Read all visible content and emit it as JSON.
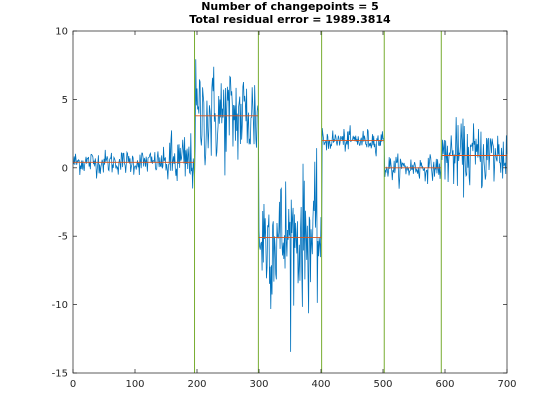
{
  "chart_data": {
    "type": "line",
    "title_lines": [
      "Number of changepoints = 5",
      "Total residual error = 1989.3814"
    ],
    "xlabel": "",
    "ylabel": "",
    "xlim": [
      0,
      700
    ],
    "ylim": [
      -15,
      10
    ],
    "xticks": [
      0,
      100,
      200,
      300,
      400,
      500,
      600,
      700
    ],
    "yticks": [
      -15,
      -10,
      -5,
      0,
      5,
      10
    ],
    "grid": false,
    "legend": "none",
    "n_samples": 700,
    "changepoints": [
      196,
      299,
      401,
      502,
      594
    ],
    "segment_means": [
      {
        "start": 0,
        "end": 196,
        "mean": 0.4
      },
      {
        "start": 196,
        "end": 299,
        "mean": 3.8
      },
      {
        "start": 299,
        "end": 401,
        "mean": -5.1
      },
      {
        "start": 401,
        "end": 502,
        "mean": 2.0
      },
      {
        "start": 502,
        "end": 594,
        "mean": 0.0
      },
      {
        "start": 594,
        "end": 700,
        "mean": 0.9
      }
    ],
    "signal_noise_sd": [
      {
        "start": 0,
        "end": 150,
        "sd": 0.45
      },
      {
        "start": 150,
        "end": 196,
        "sd": 1.1
      },
      {
        "start": 196,
        "end": 299,
        "sd": 1.9
      },
      {
        "start": 299,
        "end": 401,
        "sd": 2.4
      },
      {
        "start": 401,
        "end": 502,
        "sd": 0.4
      },
      {
        "start": 502,
        "end": 594,
        "sd": 0.45
      },
      {
        "start": 594,
        "end": 700,
        "sd": 1.2
      }
    ],
    "colors": {
      "signal": "#0072BD",
      "segment_mean": "#D95319",
      "changepoint": "#77AC30",
      "axes": "#262626"
    }
  }
}
